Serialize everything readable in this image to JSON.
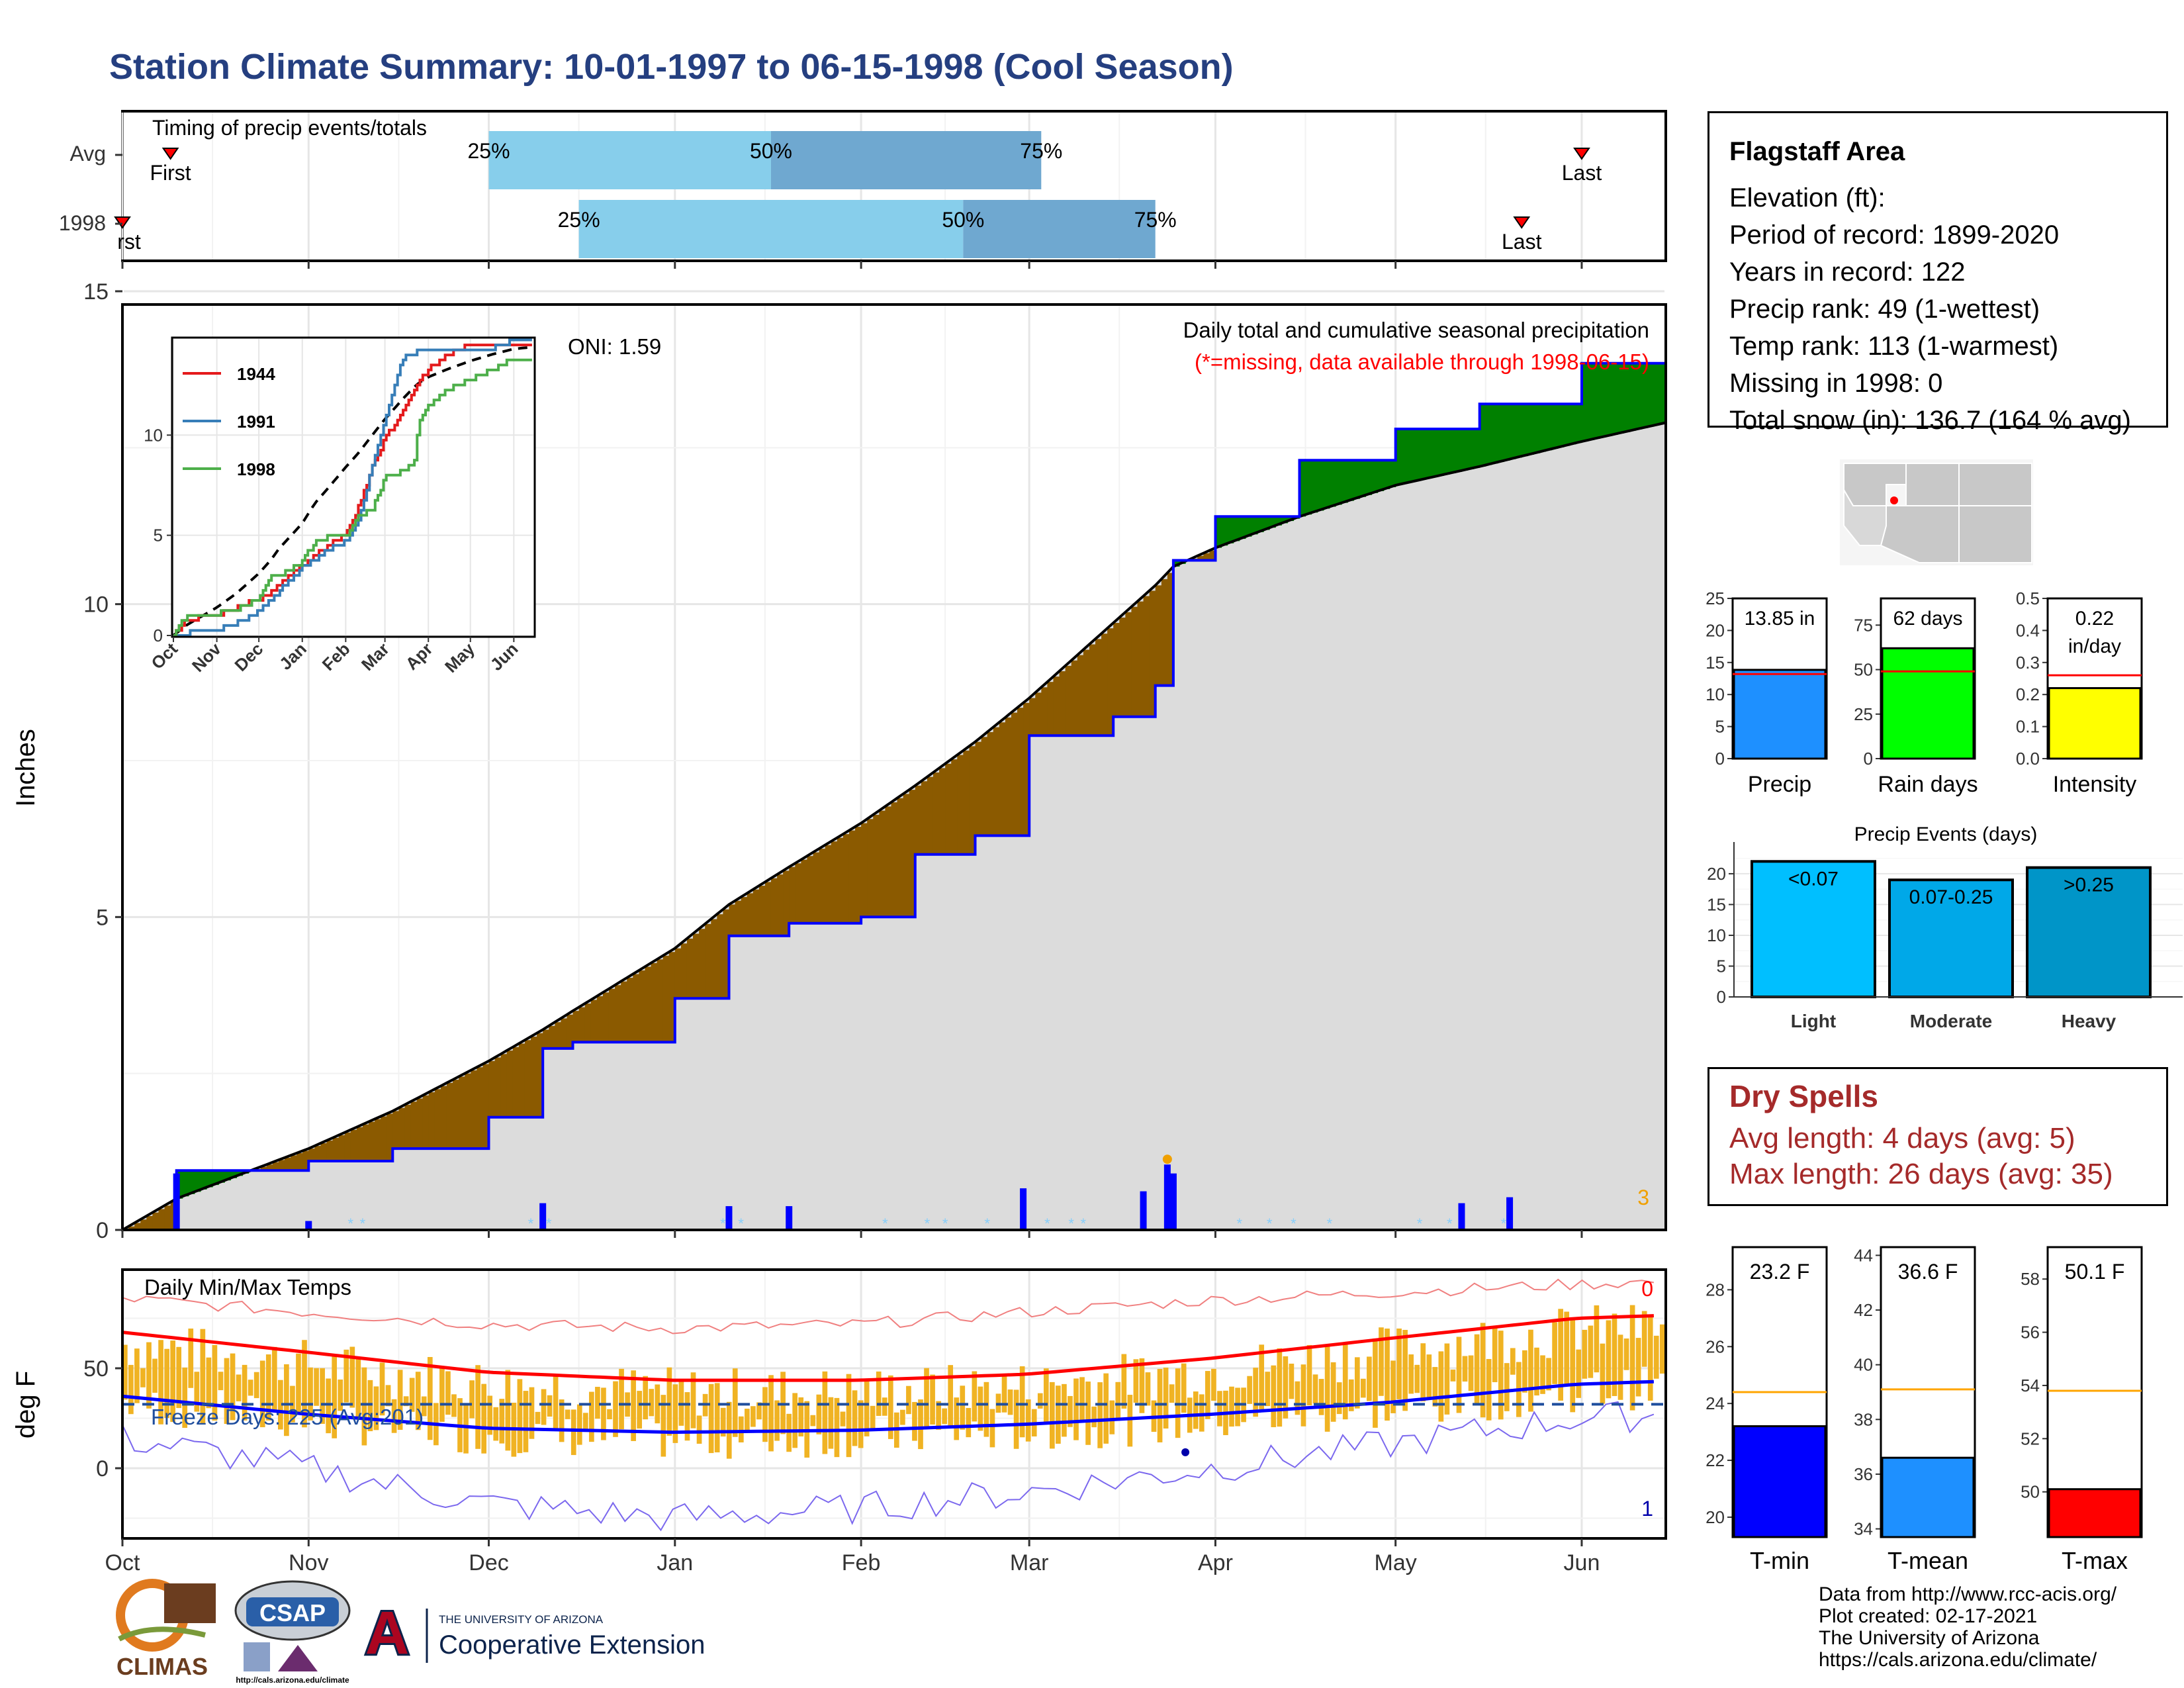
{
  "title": "Station Climate Summary: 10-01-1997 to 06-15-1998 (Cool Season)",
  "timing": {
    "title": "Timing of precip events/totals",
    "rows": [
      {
        "label": "Avg",
        "first_label": "First",
        "last_label": "Last",
        "first_date": "1997-10-09",
        "last_date": "1998-06-01",
        "p25_date": "1997-12-01",
        "p50_date": "1998-01-17",
        "p75_date": "1998-03-03"
      },
      {
        "label": "1998",
        "first_label": "First",
        "last_label": "Last",
        "first_date": "1997-10-01",
        "last_date": "1998-05-22",
        "p25_date": "1997-12-16",
        "p50_date": "1998-02-18",
        "p75_date": "1998-03-22"
      }
    ],
    "pct_labels": [
      "25%",
      "50%",
      "75%"
    ]
  },
  "precip_panel": {
    "title": "Daily total and cumulative seasonal precipitation",
    "subtitle": "(*=missing, data available through 1998-06-15)",
    "ylabel": "Inches",
    "ytick_labels": [
      "0",
      "5",
      "10",
      "15"
    ],
    "oni_label": "ONI: 1.59",
    "corner_count": "3",
    "colors": {
      "above": "#008000",
      "below": "#8b5a00",
      "climo_fill": "#dcdcdc",
      "obs_line": "#0000ff"
    }
  },
  "inset": {
    "legend": [
      {
        "name": "1944",
        "color": "#e41a1c"
      },
      {
        "name": "1991",
        "color": "#377eb8"
      },
      {
        "name": "1998",
        "color": "#4daf4a"
      }
    ],
    "ytick_labels": [
      "0",
      "5",
      "10"
    ],
    "xtick_labels": [
      "Oct",
      "Nov",
      "Dec",
      "Jan",
      "Feb",
      "Mar",
      "Apr",
      "May",
      "Jun"
    ]
  },
  "temp_panel": {
    "title": "Daily Min/Max Temps",
    "ylabel": "deg F",
    "ytick_labels": [
      "0",
      "50"
    ],
    "freeze_label": "Freeze Days: 225 (Avg:201)",
    "top_count": "0",
    "bottom_count": "1",
    "colors": {
      "bars": "#f0b323",
      "max_line": "#ff0000",
      "min_line": "#0000ff"
    }
  },
  "xaxis_months": [
    "Oct",
    "Nov",
    "Dec",
    "Jan",
    "Feb",
    "Mar",
    "Apr",
    "May",
    "Jun"
  ],
  "info": {
    "station": "Flagstaff Area",
    "lines": [
      "Elevation (ft):",
      "Period of record: 1899-2020",
      "Years in record: 122",
      "Precip rank: 49 (1-wettest)",
      "Temp rank: 113 (1-warmest)",
      "Missing in 1998: 0",
      "Total snow (in): 136.7 (164 % avg)"
    ]
  },
  "summary_bars": [
    {
      "label": "Precip",
      "value_text": "13.85 in",
      "value": 13.85,
      "avg": 13.2,
      "ymax": 25,
      "ticks": [
        "0",
        "5",
        "10",
        "15",
        "20",
        "25"
      ],
      "color": "#1e90ff"
    },
    {
      "label": "Rain days",
      "value_text": "62 days",
      "value": 62,
      "avg": 49,
      "ymax": 90,
      "ticks": [
        "0",
        "25",
        "50",
        "75"
      ],
      "color": "#00ff00"
    },
    {
      "label": "Intensity",
      "value_text": "0.22 in/day",
      "value": 0.22,
      "avg": 0.26,
      "ymax": 0.5,
      "ticks": [
        "0.0",
        "0.1",
        "0.2",
        "0.3",
        "0.4",
        "0.5"
      ],
      "color": "#ffff00"
    }
  ],
  "precip_events": {
    "title": "Precip Events (days)",
    "ticks": [
      "0",
      "5",
      "10",
      "15",
      "20"
    ],
    "bars": [
      {
        "category": "Light",
        "label": "<0.07",
        "value": 22,
        "color": "#00bfff"
      },
      {
        "category": "Moderate",
        "label": "0.07-0.25",
        "value": 19,
        "color": "#00a8e8"
      },
      {
        "category": "Heavy",
        "label": ">0.25",
        "value": 21,
        "color": "#0095c8"
      }
    ]
  },
  "dry_spells": {
    "title": "Dry Spells",
    "avg_line": "Avg length: 4 days (avg: 5)",
    "max_line": "Max length: 26 days (avg: 35)"
  },
  "temp_bars": [
    {
      "label": "T-min",
      "value_text": "23.2 F",
      "value": 23.2,
      "avg": 24.4,
      "ymin": 19.3,
      "ymax": 29.5,
      "ticks": [
        "20",
        "22",
        "24",
        "26",
        "28"
      ],
      "color": "#0000ff"
    },
    {
      "label": "T-mean",
      "value_text": "36.6 F",
      "value": 36.6,
      "avg": 39.1,
      "ymin": 33.7,
      "ymax": 44.3,
      "ticks": [
        "34",
        "36",
        "38",
        "40",
        "42",
        "44"
      ],
      "color": "#1e90ff"
    },
    {
      "label": "T-max",
      "value_text": "50.1 F",
      "value": 50.1,
      "avg": 53.8,
      "ymin": 48.3,
      "ymax": 59.2,
      "ticks": [
        "50",
        "52",
        "54",
        "56",
        "58"
      ],
      "color": "#ff0000"
    }
  ],
  "credits": [
    "Data from http://www.rcc-acis.org/",
    "Plot created: 02-17-2021",
    "The University of Arizona",
    "https://cals.arizona.edu/climate/"
  ],
  "logos": {
    "climas": "CLIMAS",
    "csap": "CSAP",
    "csap_url": "http://cals.arizona.edu/climate",
    "ua_small": "THE UNIVERSITY OF ARIZONA",
    "ua_big": "Cooperative Extension"
  },
  "chart_data": [
    {
      "type": "area",
      "title": "Daily total and cumulative seasonal precipitation",
      "ylabel": "Inches",
      "ylim": [
        0,
        15
      ],
      "x": [
        "1997-10-01",
        "1997-10-10",
        "1997-11-01",
        "1997-11-15",
        "1997-12-01",
        "1997-12-10",
        "1997-12-15",
        "1998-01-01",
        "1998-01-10",
        "1998-01-20",
        "1998-02-01",
        "1998-02-10",
        "1998-02-20",
        "1998-03-01",
        "1998-03-15",
        "1998-03-22",
        "1998-03-25",
        "1998-04-01",
        "1998-04-15",
        "1998-05-01",
        "1998-05-15",
        "1998-06-01",
        "1998-06-15"
      ],
      "series": [
        {
          "name": "1998",
          "values": [
            0.0,
            0.95,
            1.1,
            1.3,
            1.8,
            2.9,
            3.0,
            3.7,
            4.7,
            4.9,
            5.0,
            6.0,
            6.3,
            7.9,
            8.2,
            8.7,
            10.7,
            11.4,
            12.3,
            12.8,
            13.2,
            13.85,
            13.85
          ]
        },
        {
          "name": "Average",
          "values": [
            0.0,
            0.5,
            1.3,
            1.9,
            2.7,
            3.2,
            3.5,
            4.5,
            5.2,
            5.8,
            6.5,
            7.1,
            7.8,
            8.5,
            9.7,
            10.3,
            10.6,
            10.9,
            11.4,
            11.9,
            12.2,
            12.6,
            12.9
          ]
        }
      ],
      "daily_precip": [
        {
          "x": "1997-10-10",
          "value": 0.95
        },
        {
          "x": "1997-11-01",
          "value": 0.15
        },
        {
          "x": "1997-12-10",
          "value": 0.45
        },
        {
          "x": "1998-01-10",
          "value": 0.4
        },
        {
          "x": "1998-01-20",
          "value": 0.4
        },
        {
          "x": "1998-02-28",
          "value": 0.7
        },
        {
          "x": "1998-03-20",
          "value": 0.65
        },
        {
          "x": "1998-03-24",
          "value": 1.1
        },
        {
          "x": "1998-03-25",
          "value": 0.95
        },
        {
          "x": "1998-05-12",
          "value": 0.45
        },
        {
          "x": "1998-05-20",
          "value": 0.55
        }
      ]
    },
    {
      "type": "line",
      "title": "Daily Min/Max Temps",
      "ylabel": "deg F",
      "x": [
        "Oct",
        "Nov",
        "Dec",
        "Jan",
        "Feb",
        "Mar",
        "Apr",
        "May",
        "Jun"
      ],
      "series": [
        {
          "name": "Avg max",
          "values": [
            68,
            58,
            48,
            44,
            44,
            47,
            55,
            65,
            75
          ]
        },
        {
          "name": "Avg min",
          "values": [
            36,
            27,
            20,
            18,
            19,
            22,
            27,
            33,
            42
          ]
        },
        {
          "name": "Record max",
          "values": [
            85,
            78,
            72,
            70,
            72,
            78,
            84,
            88,
            92
          ]
        },
        {
          "name": "Record min",
          "values": [
            15,
            0,
            -18,
            -25,
            -20,
            -12,
            0,
            12,
            25
          ]
        }
      ],
      "freeze_line": 32
    }
  ]
}
